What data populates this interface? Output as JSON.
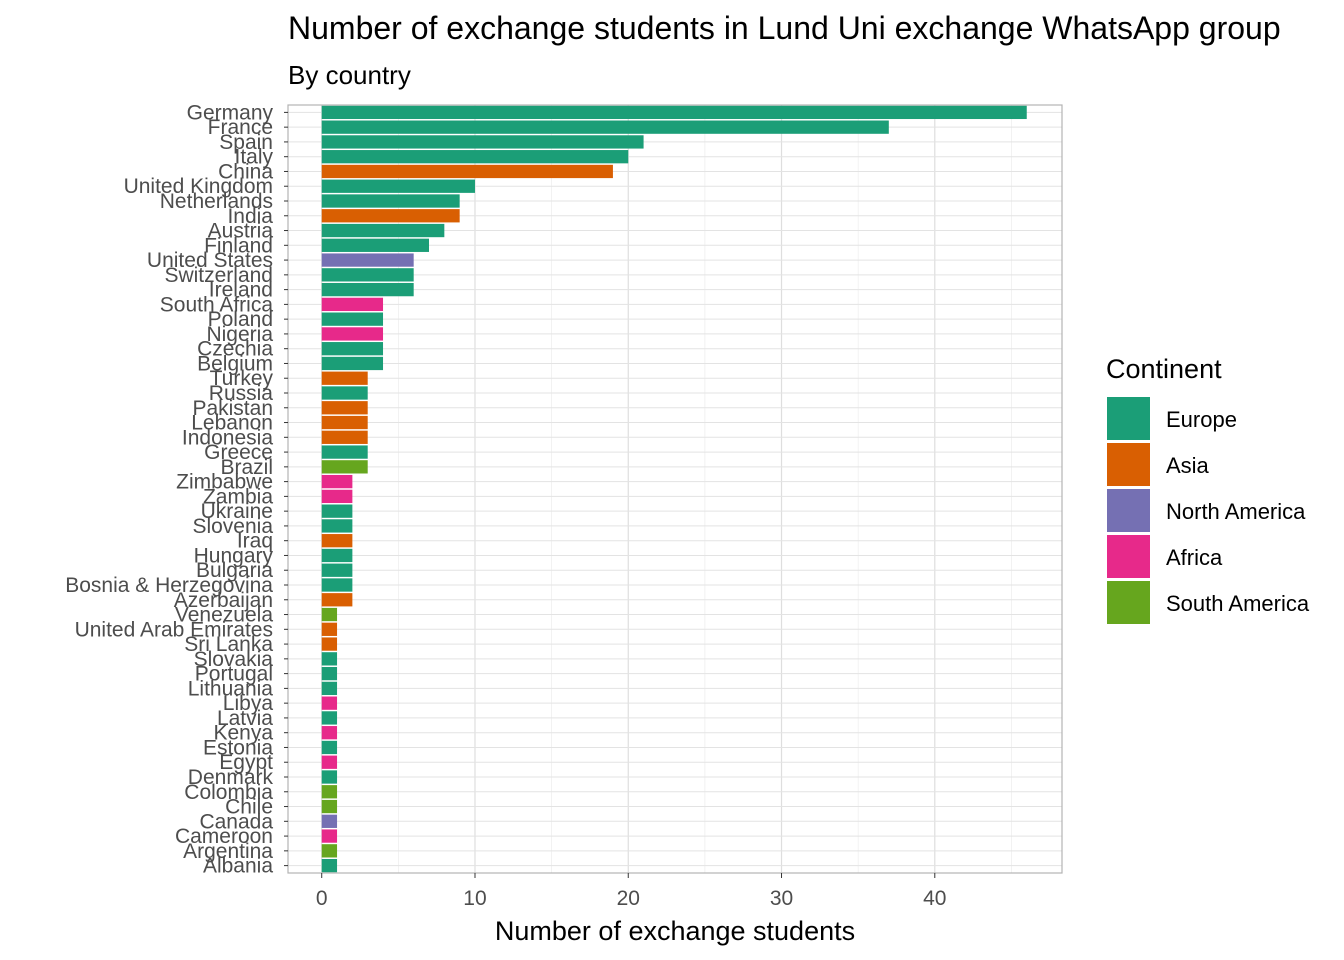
{
  "chart_data": {
    "type": "bar",
    "orientation": "horizontal",
    "title": "Number of exchange students in Lund Uni exchange WhatsApp group",
    "subtitle": "By country",
    "xlabel": "Number of exchange students",
    "ylabel": "",
    "xlim": [
      -2.2,
      48.3
    ],
    "x_ticks": [
      0,
      10,
      20,
      30,
      40
    ],
    "grid": true,
    "legend": {
      "title": "Continent",
      "placement": "right",
      "entries": [
        {
          "name": "Europe",
          "color": "#1B9E77"
        },
        {
          "name": "Asia",
          "color": "#D95F02"
        },
        {
          "name": "North America",
          "color": "#7570B3"
        },
        {
          "name": "Africa",
          "color": "#E7298A"
        },
        {
          "name": "South America",
          "color": "#66A61E"
        }
      ]
    },
    "bars": [
      {
        "country": "Germany",
        "value": 46,
        "continent": "Europe"
      },
      {
        "country": "France",
        "value": 37,
        "continent": "Europe"
      },
      {
        "country": "Spain",
        "value": 21,
        "continent": "Europe"
      },
      {
        "country": "Italy",
        "value": 20,
        "continent": "Europe"
      },
      {
        "country": "China",
        "value": 19,
        "continent": "Asia"
      },
      {
        "country": "United Kingdom",
        "value": 10,
        "continent": "Europe"
      },
      {
        "country": "Netherlands",
        "value": 9,
        "continent": "Europe"
      },
      {
        "country": "India",
        "value": 9,
        "continent": "Asia"
      },
      {
        "country": "Austria",
        "value": 8,
        "continent": "Europe"
      },
      {
        "country": "Finland",
        "value": 7,
        "continent": "Europe"
      },
      {
        "country": "United States",
        "value": 6,
        "continent": "North America"
      },
      {
        "country": "Switzerland",
        "value": 6,
        "continent": "Europe"
      },
      {
        "country": "Ireland",
        "value": 6,
        "continent": "Europe"
      },
      {
        "country": "South Africa",
        "value": 4,
        "continent": "Africa"
      },
      {
        "country": "Poland",
        "value": 4,
        "continent": "Europe"
      },
      {
        "country": "Nigeria",
        "value": 4,
        "continent": "Africa"
      },
      {
        "country": "Czechia",
        "value": 4,
        "continent": "Europe"
      },
      {
        "country": "Belgium",
        "value": 4,
        "continent": "Europe"
      },
      {
        "country": "Turkey",
        "value": 3,
        "continent": "Asia"
      },
      {
        "country": "Russia",
        "value": 3,
        "continent": "Europe"
      },
      {
        "country": "Pakistan",
        "value": 3,
        "continent": "Asia"
      },
      {
        "country": "Lebanon",
        "value": 3,
        "continent": "Asia"
      },
      {
        "country": "Indonesia",
        "value": 3,
        "continent": "Asia"
      },
      {
        "country": "Greece",
        "value": 3,
        "continent": "Europe"
      },
      {
        "country": "Brazil",
        "value": 3,
        "continent": "South America"
      },
      {
        "country": "Zimbabwe",
        "value": 2,
        "continent": "Africa"
      },
      {
        "country": "Zambia",
        "value": 2,
        "continent": "Africa"
      },
      {
        "country": "Ukraine",
        "value": 2,
        "continent": "Europe"
      },
      {
        "country": "Slovenia",
        "value": 2,
        "continent": "Europe"
      },
      {
        "country": "Iraq",
        "value": 2,
        "continent": "Asia"
      },
      {
        "country": "Hungary",
        "value": 2,
        "continent": "Europe"
      },
      {
        "country": "Bulgaria",
        "value": 2,
        "continent": "Europe"
      },
      {
        "country": "Bosnia & Herzegovina",
        "value": 2,
        "continent": "Europe"
      },
      {
        "country": "Azerbaijan",
        "value": 2,
        "continent": "Asia"
      },
      {
        "country": "Venezuela",
        "value": 1,
        "continent": "South America"
      },
      {
        "country": "United Arab Emirates",
        "value": 1,
        "continent": "Asia"
      },
      {
        "country": "Sri Lanka",
        "value": 1,
        "continent": "Asia"
      },
      {
        "country": "Slovakia",
        "value": 1,
        "continent": "Europe"
      },
      {
        "country": "Portugal",
        "value": 1,
        "continent": "Europe"
      },
      {
        "country": "Lithuania",
        "value": 1,
        "continent": "Europe"
      },
      {
        "country": "Libya",
        "value": 1,
        "continent": "Africa"
      },
      {
        "country": "Latvia",
        "value": 1,
        "continent": "Europe"
      },
      {
        "country": "Kenya",
        "value": 1,
        "continent": "Africa"
      },
      {
        "country": "Estonia",
        "value": 1,
        "continent": "Europe"
      },
      {
        "country": "Egypt",
        "value": 1,
        "continent": "Africa"
      },
      {
        "country": "Denmark",
        "value": 1,
        "continent": "Europe"
      },
      {
        "country": "Colombia",
        "value": 1,
        "continent": "South America"
      },
      {
        "country": "Chile",
        "value": 1,
        "continent": "South America"
      },
      {
        "country": "Canada",
        "value": 1,
        "continent": "North America"
      },
      {
        "country": "Cameroon",
        "value": 1,
        "continent": "Africa"
      },
      {
        "country": "Argentina",
        "value": 1,
        "continent": "South America"
      },
      {
        "country": "Albania",
        "value": 1,
        "continent": "Europe"
      }
    ]
  }
}
